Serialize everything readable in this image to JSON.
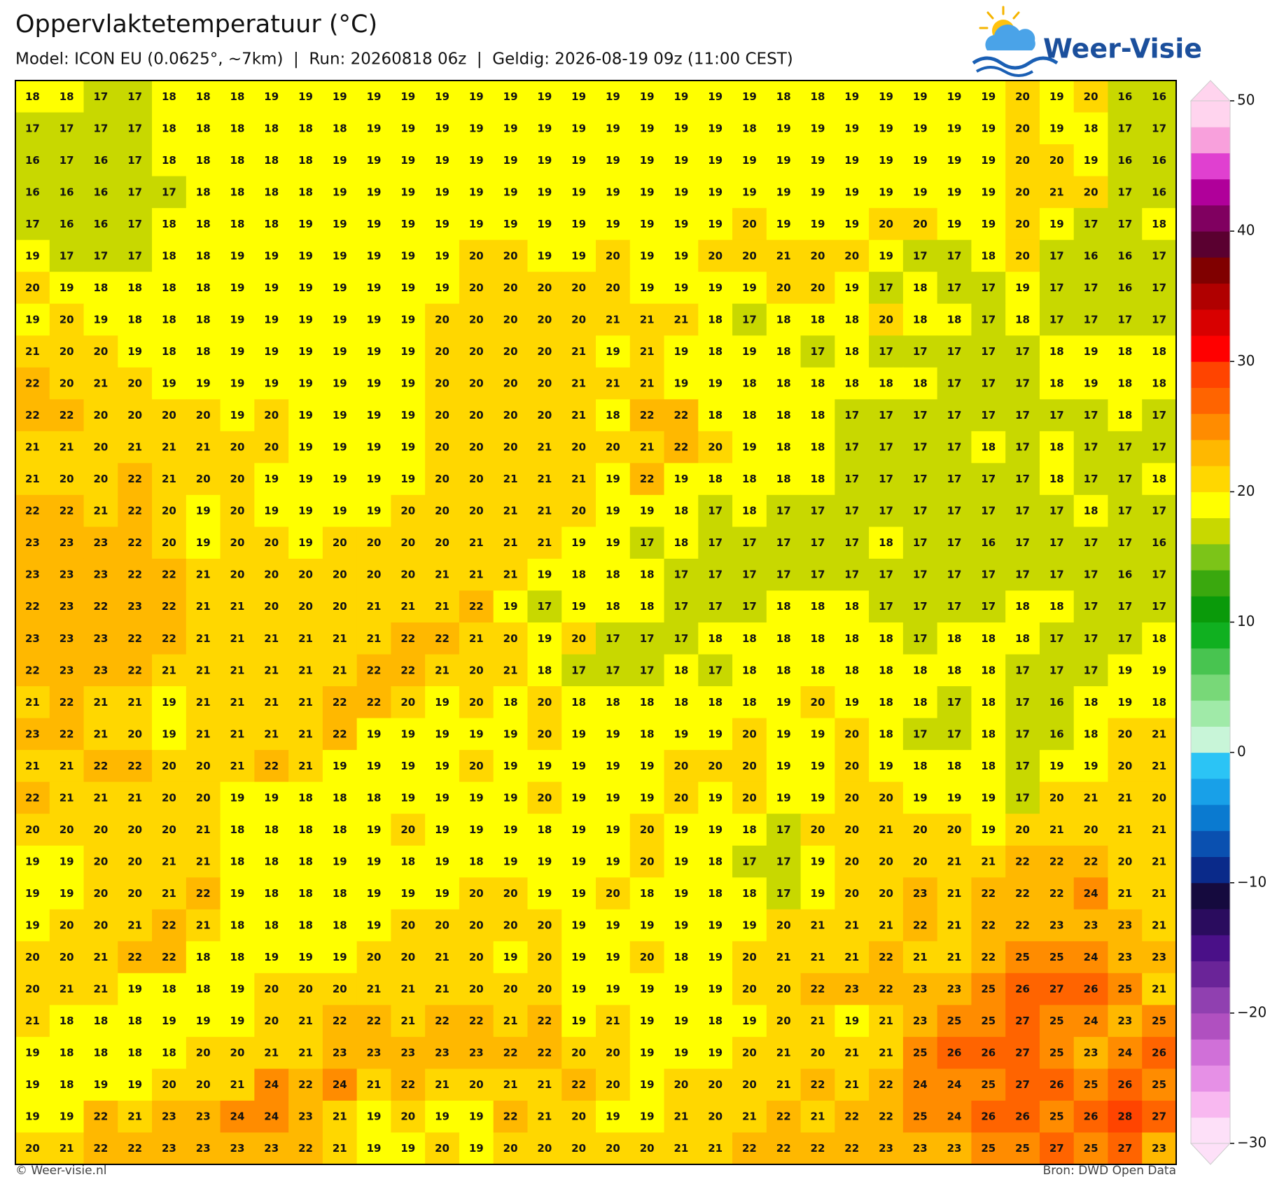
{
  "title": "Oppervlaktetemperatuur (°C)",
  "subtitle": "Model: ICON EU (0.0625°, ~7km)  |  Run: 20260818 06z  |  Geldig: 2026-08-19 09z (11:00 CEST)",
  "logo": "Weer-Visie",
  "footer_left": "© Weer-visie.nl",
  "footer_right": "Bron: DWD Open Data",
  "map": {
    "grid": [
      [
        18,
        18,
        17,
        17,
        18,
        18,
        18,
        19,
        19,
        19,
        19,
        19,
        19,
        19,
        19,
        19,
        19,
        19,
        19,
        19,
        19,
        19,
        18,
        18,
        19,
        19,
        19,
        19,
        19,
        20,
        19,
        20,
        16,
        16
      ],
      [
        17,
        17,
        17,
        17,
        18,
        18,
        18,
        18,
        18,
        18,
        19,
        19,
        19,
        19,
        19,
        19,
        19,
        19,
        19,
        19,
        19,
        18,
        19,
        19,
        19,
        19,
        19,
        19,
        19,
        20,
        19,
        18,
        17,
        17
      ],
      [
        16,
        17,
        16,
        17,
        18,
        18,
        18,
        18,
        18,
        19,
        19,
        19,
        19,
        19,
        19,
        19,
        19,
        19,
        19,
        19,
        19,
        19,
        19,
        19,
        19,
        19,
        19,
        19,
        19,
        20,
        20,
        19,
        16,
        16
      ],
      [
        16,
        16,
        16,
        17,
        17,
        18,
        18,
        18,
        18,
        19,
        19,
        19,
        19,
        19,
        19,
        19,
        19,
        19,
        19,
        19,
        19,
        19,
        19,
        19,
        19,
        19,
        19,
        19,
        19,
        20,
        21,
        20,
        17,
        16
      ],
      [
        17,
        16,
        16,
        17,
        18,
        18,
        18,
        18,
        19,
        19,
        19,
        19,
        19,
        19,
        19,
        19,
        19,
        19,
        19,
        19,
        19,
        20,
        19,
        19,
        19,
        20,
        20,
        19,
        19,
        20,
        19,
        17,
        17,
        18
      ],
      [
        19,
        17,
        17,
        17,
        18,
        18,
        19,
        19,
        19,
        19,
        19,
        19,
        19,
        20,
        20,
        19,
        19,
        20,
        19,
        19,
        20,
        20,
        21,
        20,
        20,
        19,
        17,
        17,
        18,
        20,
        17,
        16,
        16,
        17
      ],
      [
        20,
        19,
        18,
        18,
        18,
        18,
        19,
        19,
        19,
        19,
        19,
        19,
        19,
        20,
        20,
        20,
        20,
        20,
        19,
        19,
        19,
        19,
        20,
        20,
        19,
        17,
        18,
        17,
        17,
        19,
        17,
        17,
        16,
        17
      ],
      [
        19,
        20,
        19,
        18,
        18,
        18,
        19,
        19,
        19,
        19,
        19,
        19,
        20,
        20,
        20,
        20,
        20,
        21,
        21,
        21,
        18,
        17,
        18,
        18,
        18,
        20,
        18,
        18,
        17,
        18,
        17,
        17,
        17,
        17
      ],
      [
        21,
        20,
        20,
        19,
        18,
        18,
        19,
        19,
        19,
        19,
        19,
        19,
        20,
        20,
        20,
        20,
        21,
        19,
        21,
        19,
        18,
        19,
        18,
        17,
        18,
        17,
        17,
        17,
        17,
        17,
        18,
        19,
        18,
        18
      ],
      [
        22,
        20,
        21,
        20,
        19,
        19,
        19,
        19,
        19,
        19,
        19,
        19,
        20,
        20,
        20,
        20,
        21,
        21,
        21,
        19,
        19,
        18,
        18,
        18,
        18,
        18,
        18,
        17,
        17,
        17,
        18,
        19,
        18,
        18
      ],
      [
        22,
        22,
        20,
        20,
        20,
        20,
        19,
        20,
        19,
        19,
        19,
        19,
        20,
        20,
        20,
        20,
        21,
        18,
        22,
        22,
        18,
        18,
        18,
        18,
        17,
        17,
        17,
        17,
        17,
        17,
        17,
        17,
        18,
        17
      ],
      [
        21,
        21,
        20,
        21,
        21,
        21,
        20,
        20,
        19,
        19,
        19,
        19,
        20,
        20,
        20,
        21,
        20,
        20,
        21,
        22,
        20,
        19,
        18,
        18,
        17,
        17,
        17,
        17,
        18,
        17,
        18,
        17,
        17,
        17
      ],
      [
        21,
        20,
        20,
        22,
        21,
        20,
        20,
        19,
        19,
        19,
        19,
        19,
        20,
        20,
        21,
        21,
        21,
        19,
        22,
        19,
        18,
        18,
        18,
        18,
        17,
        17,
        17,
        17,
        17,
        17,
        18,
        17,
        17,
        18
      ],
      [
        22,
        22,
        21,
        22,
        20,
        19,
        20,
        19,
        19,
        19,
        19,
        20,
        20,
        20,
        21,
        21,
        20,
        19,
        19,
        18,
        17,
        18,
        17,
        17,
        17,
        17,
        17,
        17,
        17,
        17,
        17,
        18,
        17,
        17
      ],
      [
        23,
        23,
        23,
        22,
        20,
        19,
        20,
        20,
        19,
        20,
        20,
        20,
        20,
        21,
        21,
        21,
        19,
        19,
        17,
        18,
        17,
        17,
        17,
        17,
        17,
        18,
        17,
        17,
        16,
        17,
        17,
        17,
        17,
        16
      ],
      [
        23,
        23,
        23,
        22,
        22,
        21,
        20,
        20,
        20,
        20,
        20,
        20,
        21,
        21,
        21,
        19,
        18,
        18,
        18,
        17,
        17,
        17,
        17,
        17,
        17,
        17,
        17,
        17,
        17,
        17,
        17,
        17,
        16,
        17
      ],
      [
        22,
        23,
        22,
        23,
        22,
        21,
        21,
        20,
        20,
        20,
        21,
        21,
        21,
        22,
        19,
        17,
        19,
        18,
        18,
        17,
        17,
        17,
        18,
        18,
        18,
        17,
        17,
        17,
        17,
        18,
        18,
        17,
        17,
        17
      ],
      [
        23,
        23,
        23,
        22,
        22,
        21,
        21,
        21,
        21,
        21,
        21,
        22,
        22,
        21,
        20,
        19,
        20,
        17,
        17,
        17,
        18,
        18,
        18,
        18,
        18,
        18,
        17,
        18,
        18,
        18,
        17,
        17,
        17,
        18
      ],
      [
        22,
        23,
        23,
        22,
        21,
        21,
        21,
        21,
        21,
        21,
        22,
        22,
        21,
        20,
        21,
        18,
        17,
        17,
        17,
        18,
        17,
        18,
        18,
        18,
        18,
        18,
        18,
        18,
        18,
        17,
        17,
        17,
        19,
        19
      ],
      [
        21,
        22,
        21,
        21,
        19,
        21,
        21,
        21,
        21,
        22,
        22,
        20,
        19,
        20,
        18,
        20,
        18,
        18,
        18,
        18,
        18,
        18,
        19,
        20,
        19,
        18,
        18,
        17,
        18,
        17,
        16,
        18,
        19,
        18
      ],
      [
        23,
        22,
        21,
        20,
        19,
        21,
        21,
        21,
        21,
        22,
        19,
        19,
        19,
        19,
        19,
        20,
        19,
        19,
        18,
        19,
        19,
        20,
        19,
        19,
        20,
        18,
        17,
        17,
        18,
        17,
        16,
        18,
        20,
        21
      ],
      [
        21,
        21,
        22,
        22,
        20,
        20,
        21,
        22,
        21,
        19,
        19,
        19,
        19,
        20,
        19,
        19,
        19,
        19,
        19,
        20,
        20,
        20,
        19,
        19,
        20,
        19,
        18,
        18,
        18,
        17,
        19,
        19,
        20,
        21
      ],
      [
        22,
        21,
        21,
        21,
        20,
        20,
        19,
        19,
        18,
        18,
        18,
        19,
        19,
        19,
        19,
        20,
        19,
        19,
        19,
        20,
        19,
        20,
        19,
        19,
        20,
        20,
        19,
        19,
        19,
        17,
        20,
        21,
        21,
        20
      ],
      [
        20,
        20,
        20,
        20,
        20,
        21,
        18,
        18,
        18,
        18,
        19,
        20,
        19,
        19,
        19,
        18,
        19,
        19,
        20,
        19,
        19,
        18,
        17,
        20,
        20,
        21,
        20,
        20,
        19,
        20,
        21,
        20,
        21,
        21
      ],
      [
        19,
        19,
        20,
        20,
        21,
        21,
        18,
        18,
        18,
        19,
        19,
        18,
        19,
        18,
        19,
        19,
        19,
        19,
        20,
        19,
        18,
        17,
        17,
        19,
        20,
        20,
        20,
        21,
        21,
        22,
        22,
        22,
        20,
        21
      ],
      [
        19,
        19,
        20,
        20,
        21,
        22,
        19,
        18,
        18,
        18,
        19,
        19,
        19,
        20,
        20,
        19,
        19,
        20,
        18,
        19,
        18,
        18,
        17,
        19,
        20,
        20,
        23,
        21,
        22,
        22,
        22,
        24,
        21,
        21
      ],
      [
        19,
        20,
        20,
        21,
        22,
        21,
        18,
        18,
        18,
        18,
        19,
        20,
        20,
        20,
        20,
        20,
        19,
        19,
        19,
        19,
        19,
        19,
        20,
        21,
        21,
        21,
        22,
        21,
        22,
        22,
        23,
        23,
        23,
        21
      ],
      [
        20,
        20,
        21,
        22,
        22,
        18,
        18,
        19,
        19,
        19,
        20,
        20,
        21,
        20,
        19,
        20,
        19,
        19,
        20,
        18,
        19,
        20,
        21,
        21,
        21,
        22,
        21,
        21,
        22,
        25,
        25,
        24,
        23,
        23
      ],
      [
        20,
        21,
        21,
        19,
        18,
        18,
        19,
        20,
        20,
        20,
        21,
        21,
        21,
        20,
        20,
        20,
        19,
        19,
        19,
        19,
        19,
        20,
        20,
        22,
        23,
        22,
        23,
        23,
        25,
        26,
        27,
        26,
        25,
        21
      ],
      [
        21,
        18,
        18,
        18,
        19,
        19,
        19,
        20,
        21,
        22,
        22,
        21,
        22,
        22,
        21,
        22,
        19,
        21,
        19,
        19,
        18,
        19,
        20,
        21,
        19,
        21,
        23,
        25,
        25,
        27,
        25,
        24,
        23,
        25
      ],
      [
        19,
        18,
        18,
        18,
        18,
        20,
        20,
        21,
        21,
        23,
        23,
        23,
        23,
        23,
        22,
        22,
        20,
        20,
        19,
        19,
        19,
        20,
        21,
        20,
        21,
        21,
        25,
        26,
        26,
        27,
        25,
        23,
        24,
        26
      ],
      [
        19,
        18,
        19,
        19,
        20,
        20,
        21,
        24,
        22,
        24,
        21,
        22,
        21,
        20,
        21,
        21,
        22,
        20,
        19,
        20,
        20,
        20,
        21,
        22,
        21,
        22,
        24,
        24,
        25,
        27,
        26,
        25,
        26,
        25
      ],
      [
        19,
        19,
        22,
        21,
        23,
        23,
        24,
        24,
        23,
        21,
        19,
        20,
        19,
        19,
        22,
        21,
        20,
        19,
        19,
        21,
        20,
        21,
        22,
        21,
        22,
        22,
        25,
        24,
        26,
        26,
        25,
        26,
        28,
        27
      ],
      [
        20,
        21,
        22,
        22,
        23,
        23,
        23,
        23,
        22,
        21,
        19,
        19,
        20,
        19,
        20,
        20,
        20,
        20,
        20,
        21,
        21,
        22,
        22,
        22,
        22,
        23,
        23,
        23,
        25,
        25,
        27,
        25,
        27,
        23
      ]
    ]
  },
  "colorbar": {
    "lim": [
      -30,
      50
    ],
    "ticks": [
      50,
      40,
      30,
      20,
      10,
      0,
      {
        "value": -10,
        "label": "−10"
      },
      {
        "value": -20,
        "label": "−20"
      },
      {
        "value": -30,
        "label": "−30"
      }
    ],
    "colors": [
      "#fde0f8",
      "#f8b8f0",
      "#e690e6",
      "#d070d8",
      "#b050c0",
      "#9040b0",
      "#6a2498",
      "#4a1088",
      "#2a0c5e",
      "#150a3e",
      "#0a2a8a",
      "#0a50b0",
      "#0a7ad0",
      "#18a0e8",
      "#2bc4f5",
      "#c8f5d8",
      "#a0eaa8",
      "#78d878",
      "#48c450",
      "#10b020",
      "#0a9a0a",
      "#3aa80e",
      "#7cc418",
      "#c8d800",
      "#ffff00",
      "#ffd700",
      "#ffb800",
      "#ff8c00",
      "#ff6400",
      "#ff4400",
      "#ff0000",
      "#d80000",
      "#b00000",
      "#800000",
      "#5a0030",
      "#800060",
      "#b0009a",
      "#e040d0",
      "#f8a0dc",
      "#ffd4ee"
    ]
  }
}
